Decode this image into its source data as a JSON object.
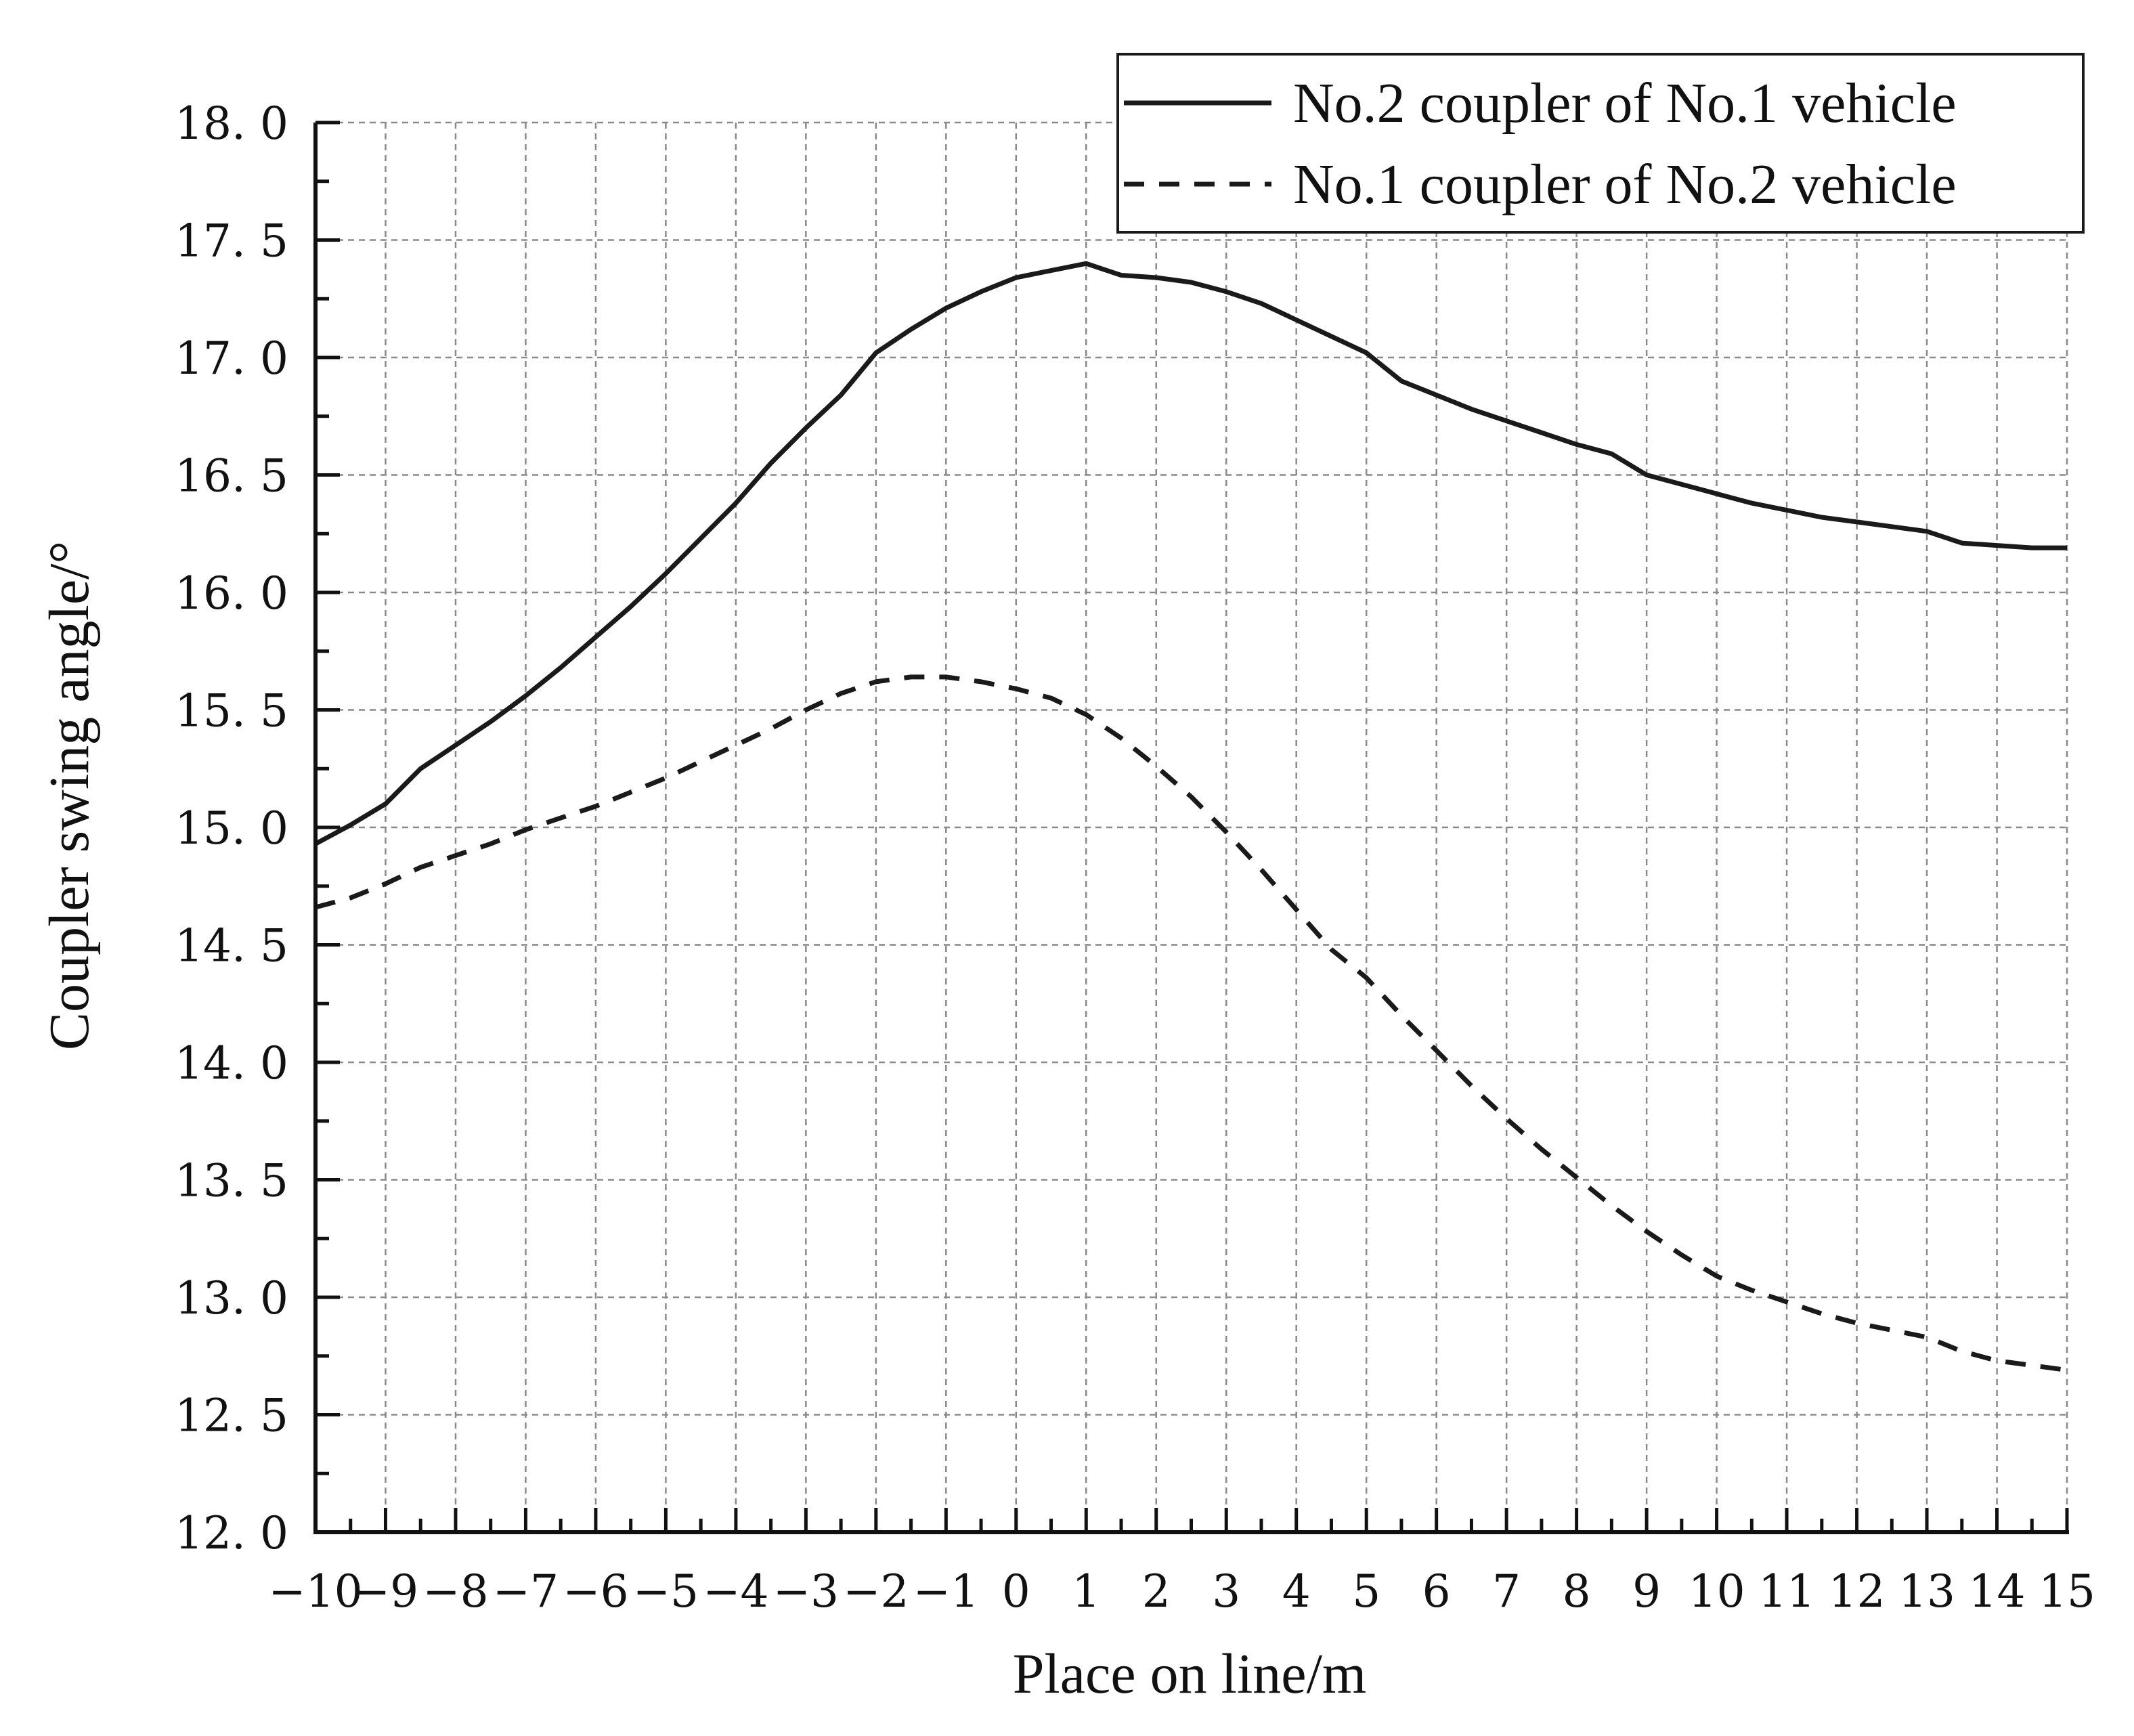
{
  "chart_data": {
    "type": "line",
    "xlabel": "Place on line/m",
    "ylabel": "Coupler swing angle/°",
    "xlim": [
      -10,
      15
    ],
    "ylim": [
      12.0,
      18.0
    ],
    "x_ticks": [
      -10,
      -9,
      -8,
      -7,
      -6,
      -5,
      -4,
      -3,
      -2,
      -1,
      0,
      1,
      2,
      3,
      4,
      5,
      6,
      7,
      8,
      9,
      10,
      11,
      12,
      13,
      14,
      15
    ],
    "x_tick_labels": [
      "−10",
      "−9",
      "−8",
      "−7",
      "−6",
      "−5",
      "−4",
      "−3",
      "−2",
      "−1",
      "0",
      "1",
      "2",
      "3",
      "4",
      "5",
      "6",
      "7",
      "8",
      "9",
      "10",
      "11",
      "12",
      "13",
      "14",
      "15"
    ],
    "y_ticks": [
      12.0,
      12.5,
      13.0,
      13.5,
      14.0,
      14.5,
      15.0,
      15.5,
      16.0,
      16.5,
      17.0,
      17.5,
      18.0
    ],
    "y_tick_labels": [
      "12. 0",
      "12. 5",
      "13. 0",
      "13. 5",
      "14. 0",
      "14. 5",
      "15. 0",
      "15. 5",
      "16. 0",
      "16. 5",
      "17. 0",
      "17. 5",
      "18. 0"
    ],
    "grid": true,
    "legend_position": "top-right",
    "series": [
      {
        "name": "No.2 coupler of No.1 vehicle",
        "line_style": "solid",
        "color": "#1a1a1a",
        "points": [
          [
            -10,
            14.93
          ],
          [
            -9.5,
            15.01
          ],
          [
            -9,
            15.1
          ],
          [
            -8.5,
            15.25
          ],
          [
            -8,
            15.35
          ],
          [
            -7.5,
            15.45
          ],
          [
            -7,
            15.56
          ],
          [
            -6.5,
            15.68
          ],
          [
            -6,
            15.81
          ],
          [
            -5.5,
            15.94
          ],
          [
            -5,
            16.08
          ],
          [
            -4.5,
            16.23
          ],
          [
            -4,
            16.38
          ],
          [
            -3.5,
            16.55
          ],
          [
            -3,
            16.7
          ],
          [
            -2.5,
            16.84
          ],
          [
            -2,
            17.02
          ],
          [
            -1.5,
            17.12
          ],
          [
            -1,
            17.21
          ],
          [
            -0.5,
            17.28
          ],
          [
            0,
            17.34
          ],
          [
            0.5,
            17.37
          ],
          [
            1,
            17.4
          ],
          [
            1.5,
            17.35
          ],
          [
            2,
            17.34
          ],
          [
            2.5,
            17.32
          ],
          [
            3,
            17.28
          ],
          [
            3.5,
            17.23
          ],
          [
            4,
            17.16
          ],
          [
            4.5,
            17.09
          ],
          [
            5,
            17.02
          ],
          [
            5.5,
            16.9
          ],
          [
            6,
            16.84
          ],
          [
            6.5,
            16.78
          ],
          [
            7,
            16.73
          ],
          [
            7.5,
            16.68
          ],
          [
            8,
            16.63
          ],
          [
            8.5,
            16.59
          ],
          [
            9,
            16.5
          ],
          [
            9.5,
            16.46
          ],
          [
            10,
            16.42
          ],
          [
            10.5,
            16.38
          ],
          [
            11,
            16.35
          ],
          [
            11.5,
            16.32
          ],
          [
            12,
            16.3
          ],
          [
            12.5,
            16.28
          ],
          [
            13,
            16.26
          ],
          [
            13.5,
            16.21
          ],
          [
            14,
            16.2
          ],
          [
            14.5,
            16.19
          ],
          [
            15,
            16.19
          ]
        ]
      },
      {
        "name": "No.1 coupler of No.2 vehicle",
        "line_style": "dashed",
        "color": "#1a1a1a",
        "points": [
          [
            -10,
            14.66
          ],
          [
            -9.5,
            14.7
          ],
          [
            -9,
            14.76
          ],
          [
            -8.5,
            14.83
          ],
          [
            -8,
            14.88
          ],
          [
            -7.5,
            14.93
          ],
          [
            -7,
            14.99
          ],
          [
            -6.5,
            15.04
          ],
          [
            -6,
            15.09
          ],
          [
            -5.5,
            15.15
          ],
          [
            -5,
            15.21
          ],
          [
            -4.5,
            15.28
          ],
          [
            -4,
            15.35
          ],
          [
            -3.5,
            15.42
          ],
          [
            -3,
            15.5
          ],
          [
            -2.5,
            15.57
          ],
          [
            -2,
            15.62
          ],
          [
            -1.5,
            15.64
          ],
          [
            -1,
            15.64
          ],
          [
            -0.5,
            15.62
          ],
          [
            0,
            15.59
          ],
          [
            0.5,
            15.55
          ],
          [
            1,
            15.48
          ],
          [
            1.5,
            15.38
          ],
          [
            2,
            15.26
          ],
          [
            2.5,
            15.13
          ],
          [
            3,
            14.98
          ],
          [
            3.5,
            14.82
          ],
          [
            4,
            14.65
          ],
          [
            4.5,
            14.48
          ],
          [
            5,
            14.36
          ],
          [
            5.5,
            14.2
          ],
          [
            6,
            14.05
          ],
          [
            6.5,
            13.9
          ],
          [
            7,
            13.76
          ],
          [
            7.5,
            13.63
          ],
          [
            8,
            13.51
          ],
          [
            8.5,
            13.39
          ],
          [
            9,
            13.28
          ],
          [
            9.5,
            13.18
          ],
          [
            10,
            13.09
          ],
          [
            10.5,
            13.03
          ],
          [
            11,
            12.98
          ],
          [
            11.5,
            12.93
          ],
          [
            12,
            12.89
          ],
          [
            12.5,
            12.86
          ],
          [
            13,
            12.83
          ],
          [
            13.5,
            12.77
          ],
          [
            14,
            12.73
          ],
          [
            14.5,
            12.71
          ],
          [
            15,
            12.69
          ]
        ]
      }
    ]
  }
}
